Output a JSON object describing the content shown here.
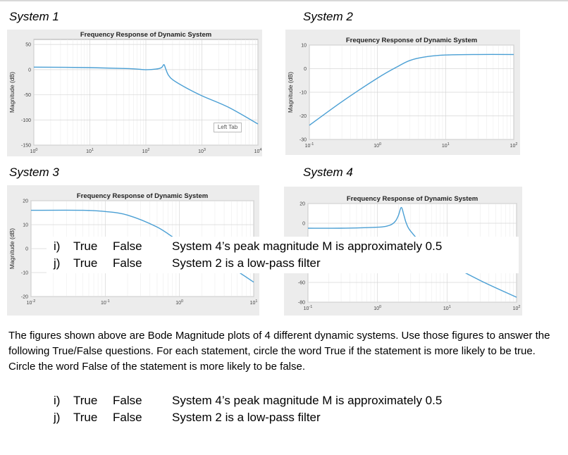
{
  "system_labels": [
    "System 1",
    "System 2",
    "System 3",
    "System 4"
  ],
  "chart_data": [
    {
      "type": "line",
      "title": "Frequency Response of Dynamic System",
      "ylabel": "Magnitude (dB)",
      "xscale": "log",
      "xlim": [
        1,
        10000
      ],
      "ylim": [
        -150,
        60
      ],
      "yticks": [
        -150,
        -100,
        -50,
        0,
        50
      ],
      "xticks": [
        1,
        10,
        100,
        1000,
        10000
      ],
      "x": [
        1,
        10,
        50,
        100,
        150,
        190,
        210,
        225,
        250,
        300,
        500,
        1000,
        3000,
        10000
      ],
      "y": [
        5,
        4,
        2,
        0,
        1,
        4,
        10,
        2,
        -10,
        -20,
        -35,
        -52,
        -75,
        -108
      ],
      "color": "#4a9fd4"
    },
    {
      "type": "line",
      "title": "Frequency Response of Dynamic System",
      "ylabel": "Magnitude (dB)",
      "xscale": "log",
      "xlim": [
        0.1,
        100
      ],
      "ylim": [
        -30,
        10
      ],
      "yticks": [
        -30,
        -20,
        -10,
        0,
        10
      ],
      "xticks": [
        0.1,
        1,
        10,
        100
      ],
      "x": [
        0.1,
        0.3,
        1,
        2,
        3,
        5,
        10,
        30,
        100
      ],
      "y": [
        -24,
        -14,
        -4,
        1,
        3.5,
        5,
        5.8,
        6,
        6
      ],
      "color": "#4a9fd4"
    },
    {
      "type": "line",
      "title": "Frequency Response of Dynamic System",
      "ylabel": "Magnitude (dB)",
      "xscale": "log",
      "xlim": [
        0.01,
        10
      ],
      "ylim": [
        -20,
        20
      ],
      "yticks": [
        -20,
        -10,
        0,
        10,
        20
      ],
      "xticks": [
        0.01,
        0.1,
        1,
        10
      ],
      "x": [
        0.01,
        0.05,
        0.1,
        0.2,
        0.5,
        1,
        2,
        5,
        10
      ],
      "y": [
        16,
        16,
        15.5,
        14,
        9,
        3,
        -2,
        -8,
        -14
      ],
      "color": "#4a9fd4"
    },
    {
      "type": "line",
      "title": "Frequency Response of Dynamic System",
      "ylabel": "dB)",
      "xscale": "log",
      "xlim": [
        0.1,
        100
      ],
      "ylim": [
        -80,
        20
      ],
      "yticks": [
        -80,
        -60,
        0,
        20
      ],
      "xticks": [
        0.1,
        1,
        10,
        100
      ],
      "x": [
        0.1,
        0.3,
        1,
        1.5,
        1.8,
        2,
        2.2,
        2.4,
        2.6,
        3,
        5,
        10,
        30,
        100
      ],
      "y": [
        -5,
        -5,
        -4,
        -2,
        2,
        8,
        16,
        8,
        0,
        -8,
        -25,
        -40,
        -58,
        -75
      ],
      "color": "#4a9fd4"
    }
  ],
  "overlay_tag": "Left Tab",
  "paragraph": "The figures shown above are Bode Magnitude plots of 4 different dynamic systems.  Use those figures to answer the following True/False questions.  For each statement, circle the word True if the statement is more likely to be true.  Circle the word False of the statement is more likely to be false.",
  "questions": [
    {
      "num": "i)",
      "t": "True",
      "f": "False",
      "text": "System 4’s peak magnitude M is approximately 0.5"
    },
    {
      "num": "j)",
      "t": "True",
      "f": "False",
      "text": "System 2 is a low-pass filter"
    }
  ]
}
